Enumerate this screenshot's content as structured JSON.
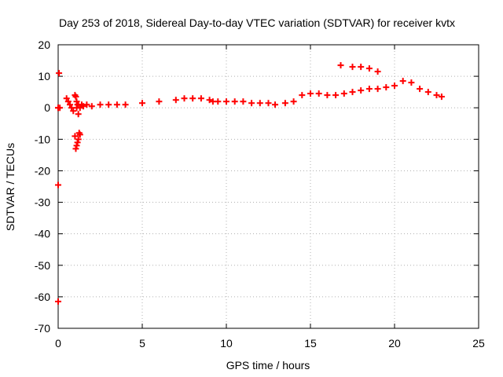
{
  "chart_data": {
    "type": "scatter",
    "title": "Day 253 of 2018, Sidereal Day-to-day VTEC variation (SDTVAR) for receiver kvtx",
    "xlabel": "GPS time / hours",
    "ylabel": "SDTVAR / TECUs",
    "xlim": [
      0,
      25
    ],
    "ylim": [
      -70,
      20
    ],
    "xticks": [
      0,
      5,
      10,
      15,
      20,
      25
    ],
    "yticks": [
      20,
      10,
      0,
      -10,
      -20,
      -30,
      -40,
      -50,
      -60,
      -70
    ],
    "grid": true,
    "marker": "plus",
    "color": "#ff0000",
    "series": [
      {
        "name": "SDTVAR",
        "x": [
          0.0,
          0.05,
          0.1,
          0.5,
          0.6,
          0.7,
          0.8,
          0.9,
          1.0,
          1.05,
          1.1,
          1.15,
          1.2,
          1.25,
          1.3,
          1.2,
          1.15,
          1.1,
          1.05,
          1.0,
          1.1,
          1.2,
          1.3,
          1.4,
          1.5,
          1.7,
          2.0,
          2.5,
          3.0,
          3.5,
          4.0,
          5.0,
          6.0,
          7.0,
          7.5,
          8.0,
          8.5,
          9.0,
          9.2,
          9.5,
          10.0,
          10.5,
          11.0,
          11.5,
          12.0,
          12.5,
          12.9,
          13.5,
          14.0,
          14.5,
          15.0,
          15.5,
          16.0,
          16.5,
          17.0,
          17.5,
          18.0,
          18.5,
          19.0,
          19.5,
          20.0,
          20.5,
          21.0,
          21.5,
          22.0,
          22.5,
          22.8,
          16.8,
          17.5,
          18.0,
          18.5,
          19.0,
          0.0,
          0.0,
          0.0
        ],
        "y": [
          0.0,
          11.0,
          0.0,
          3.0,
          2.0,
          1.0,
          0.0,
          -1.0,
          4.0,
          3.5,
          2.0,
          1.0,
          -2.0,
          -8.0,
          -8.5,
          -10.0,
          -11.0,
          -12.0,
          -13.0,
          -9.0,
          0.0,
          1.0,
          0.0,
          1.0,
          0.5,
          1.0,
          0.5,
          1.0,
          1.0,
          1.0,
          1.0,
          1.5,
          2.0,
          2.5,
          3.0,
          3.0,
          3.0,
          2.5,
          2.0,
          2.0,
          2.0,
          2.0,
          2.0,
          1.5,
          1.5,
          1.5,
          1.0,
          1.5,
          2.0,
          4.0,
          4.5,
          4.5,
          4.0,
          4.0,
          4.5,
          5.0,
          5.5,
          6.0,
          6.0,
          6.5,
          7.0,
          8.5,
          8.0,
          6.0,
          5.0,
          4.0,
          3.5,
          13.5,
          13.0,
          13.0,
          12.5,
          11.5,
          -24.5,
          -61.5,
          0.0
        ]
      }
    ]
  }
}
